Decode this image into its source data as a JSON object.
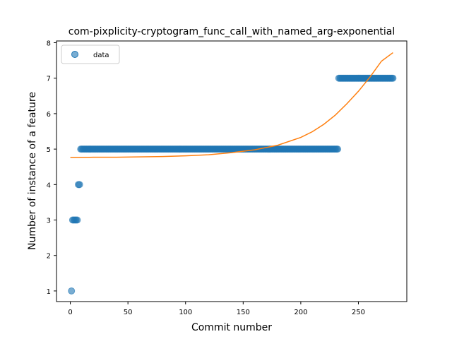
{
  "chart_data": {
    "type": "scatter",
    "title": "com-pixplicity-cryptogram_func_call_with_named_arg-exponential",
    "xlabel": "Commit number",
    "ylabel": "Number of instance of a feature",
    "xlim": [
      -12,
      292
    ],
    "ylim": [
      0.7,
      8.05
    ],
    "xticks": [
      0,
      50,
      100,
      150,
      200,
      250
    ],
    "yticks": [
      1,
      2,
      3,
      4,
      5,
      6,
      7,
      8
    ],
    "grid": false,
    "legend": {
      "placement": "top-left",
      "entries": [
        "data"
      ]
    },
    "colors": {
      "data": "#1f77b4",
      "fit": "#ff7f0e"
    },
    "series": [
      {
        "name": "data",
        "kind": "scatter",
        "segments": [
          {
            "x_start": 1,
            "x_end": 1,
            "y": 1
          },
          {
            "x_start": 2,
            "x_end": 6,
            "y": 3
          },
          {
            "x_start": 7,
            "x_end": 8,
            "y": 4
          },
          {
            "x_start": 9,
            "x_end": 232,
            "y": 5
          },
          {
            "x_start": 233,
            "x_end": 280,
            "y": 7
          }
        ]
      },
      {
        "kind": "line",
        "x": [
          0,
          20,
          40,
          60,
          80,
          100,
          120,
          140,
          160,
          180,
          200,
          210,
          220,
          230,
          240,
          250,
          260,
          270,
          280
        ],
        "y": [
          4.76,
          4.77,
          4.77,
          4.78,
          4.79,
          4.81,
          4.84,
          4.9,
          4.98,
          5.11,
          5.33,
          5.49,
          5.7,
          5.96,
          6.28,
          6.63,
          7.03,
          7.48,
          7.72
        ]
      }
    ]
  }
}
